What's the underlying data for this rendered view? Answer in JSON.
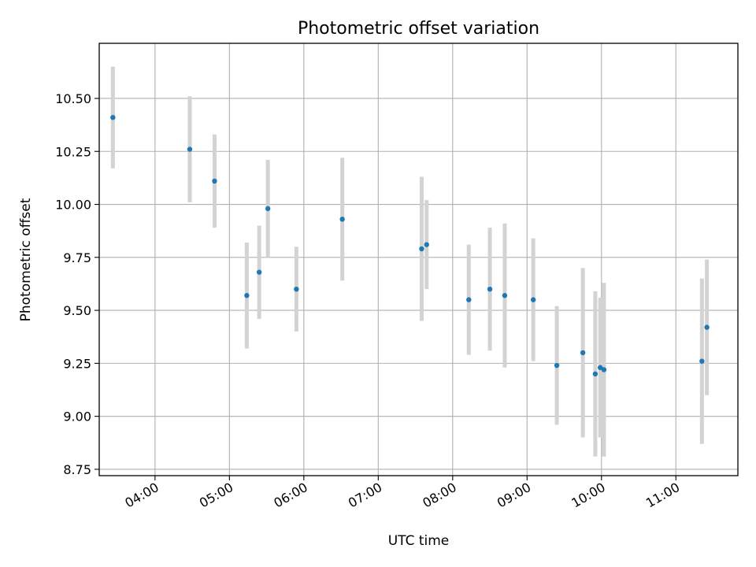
{
  "chart_data": {
    "type": "scatter",
    "title": "Photometric offset variation",
    "xlabel": "UTC time",
    "ylabel": "Photometric offset",
    "grid": true,
    "xlim": [
      "03:15",
      "11:50"
    ],
    "ylim": [
      8.72,
      10.76
    ],
    "x_ticks": [
      "04:00",
      "05:00",
      "06:00",
      "07:00",
      "08:00",
      "09:00",
      "10:00",
      "11:00"
    ],
    "y_ticks": [
      "8.75",
      "9.00",
      "9.25",
      "9.50",
      "9.75",
      "10.00",
      "10.25",
      "10.50"
    ],
    "point_color": "#1f77b4",
    "errorbar_color": "#d3d3d3",
    "points": [
      {
        "x": "03:26",
        "y": 10.41,
        "err": 0.24
      },
      {
        "x": "04:28",
        "y": 10.26,
        "err": 0.25
      },
      {
        "x": "04:48",
        "y": 10.11,
        "err": 0.22
      },
      {
        "x": "05:14",
        "y": 9.57,
        "err": 0.25
      },
      {
        "x": "05:24",
        "y": 9.68,
        "err": 0.22
      },
      {
        "x": "05:31",
        "y": 9.98,
        "err": 0.23
      },
      {
        "x": "05:54",
        "y": 9.6,
        "err": 0.2
      },
      {
        "x": "06:31",
        "y": 9.93,
        "err": 0.29
      },
      {
        "x": "07:35",
        "y": 9.79,
        "err": 0.34
      },
      {
        "x": "07:39",
        "y": 9.81,
        "err": 0.21
      },
      {
        "x": "08:13",
        "y": 9.55,
        "err": 0.26
      },
      {
        "x": "08:30",
        "y": 9.6,
        "err": 0.29
      },
      {
        "x": "08:42",
        "y": 9.57,
        "err": 0.34
      },
      {
        "x": "09:05",
        "y": 9.55,
        "err": 0.29
      },
      {
        "x": "09:24",
        "y": 9.24,
        "err": 0.28
      },
      {
        "x": "09:45",
        "y": 9.3,
        "err": 0.4
      },
      {
        "x": "09:55",
        "y": 9.2,
        "err": 0.39
      },
      {
        "x": "09:59",
        "y": 9.23,
        "err": 0.33
      },
      {
        "x": "10:02",
        "y": 9.22,
        "err": 0.41
      },
      {
        "x": "11:21",
        "y": 9.26,
        "err": 0.39
      },
      {
        "x": "11:25",
        "y": 9.42,
        "err": 0.32
      }
    ]
  }
}
